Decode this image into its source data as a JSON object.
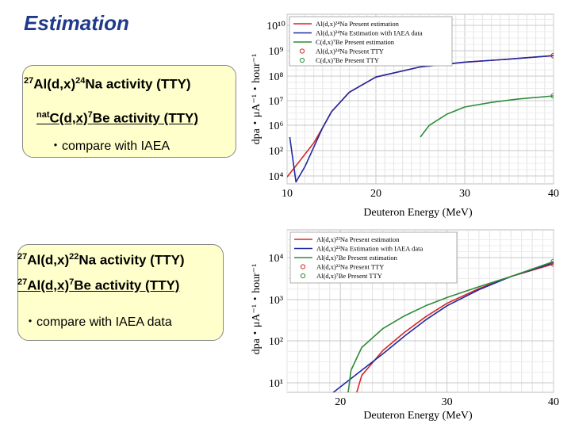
{
  "slide": {
    "title": "Estimation",
    "box1": {
      "line1": {
        "sup1": "27",
        "main1": "Al(d,x)",
        "sup2": "24",
        "main2": "Na activity (TTY)"
      },
      "line2": {
        "sup1": "nat",
        "main1": "C(d,x)",
        "sup2": "7",
        "main2": "Be activity (TTY)"
      },
      "bullet": "・compare with IAEA"
    },
    "box2": {
      "line1": {
        "sup1": "27",
        "main1": "Al(d,x)",
        "sup2": "22",
        "main2": "Na activity (TTY)"
      },
      "line2": {
        "sup1": "27",
        "main1": "Al(d,x)",
        "sup2": "7",
        "main2": "Be activity (TTY)"
      },
      "bullet": "・compare with IAEA data"
    }
  },
  "chart_data": [
    {
      "type": "line",
      "title": "",
      "xlabel": "Deuteron Energy (MeV)",
      "ylabel": "dpa・μA⁻¹・hour⁻¹",
      "xlim": [
        10,
        40
      ],
      "yscale": "log",
      "x_ticks": [
        "10",
        "20",
        "30",
        "40"
      ],
      "y_ticks": [
        "10⁴",
        "10²",
        "10⁶",
        "10⁷",
        "10⁸",
        "10⁹",
        "10¹⁰"
      ],
      "grid": true,
      "legend_position": "top-right",
      "series": [
        {
          "name": "Al(d,x)²⁴Na Present estimation",
          "color": "#d62728",
          "style": "solid",
          "x": [
            10,
            11,
            12,
            13,
            14,
            15,
            17,
            20,
            25,
            30,
            35,
            40
          ],
          "y": [
            90,
            340,
            1300,
            5000,
            30000,
            200000,
            2000000,
            12000000,
            40000000,
            70000000,
            100000000,
            150000000
          ]
        },
        {
          "name": "Al(d,x)²⁴Na Estimation with IAEA data",
          "color": "#1f2aa0",
          "style": "solid",
          "x": [
            10.3,
            11,
            12,
            13,
            14,
            15,
            17,
            20,
            25,
            30,
            35,
            40
          ],
          "y": [
            10000,
            50,
            300,
            3000,
            30000,
            200000,
            2000000,
            12000000,
            40000000,
            70000000,
            100000000,
            150000000
          ]
        },
        {
          "name": "C(d,x)⁷Be Present estimation",
          "color": "#2e8b3a",
          "style": "solid",
          "x": [
            25,
            26,
            28,
            30,
            33,
            36,
            40
          ],
          "y": [
            10000,
            40000,
            150000,
            350000,
            600000,
            900000,
            1300000
          ]
        },
        {
          "name": "Al(d,x)²⁴Na Present TTY",
          "color": "#d62728",
          "style": "marker",
          "x": [
            40
          ],
          "y": [
            150000000
          ]
        },
        {
          "name": "C(d,x)⁷Be Present TTY",
          "color": "#2e8b3a",
          "style": "marker",
          "x": [
            40
          ],
          "y": [
            1300000
          ]
        }
      ]
    },
    {
      "type": "line",
      "title": "",
      "xlabel": "Deuteron Energy (MeV)",
      "ylabel": "dpa・μA⁻¹・hour⁻¹",
      "xlim": [
        15,
        40
      ],
      "ylim": [
        1,
        100000
      ],
      "yscale": "log",
      "x_ticks": [
        "20",
        "30",
        "40"
      ],
      "y_ticks": [
        "10¹",
        "10²",
        "10³",
        "10⁴"
      ],
      "grid": true,
      "legend_position": "top-left",
      "series": [
        {
          "name": "Al(d,x)²²Na Present estimation",
          "color": "#d62728",
          "style": "solid",
          "x": [
            21,
            22,
            24,
            26,
            28,
            30,
            33,
            36,
            40
          ],
          "y": [
            2,
            15,
            60,
            160,
            380,
            800,
            1800,
            3500,
            7000
          ]
        },
        {
          "name": "Al(d,x)²²Na Estimation with IAEA data",
          "color": "#1f2aa0",
          "style": "solid",
          "x": [
            17,
            20,
            22,
            24,
            26,
            28,
            30,
            33,
            36,
            40
          ],
          "y": [
            2,
            8,
            20,
            50,
            130,
            320,
            700,
            1700,
            3500,
            7500
          ]
        },
        {
          "name": "Al(d,x)⁷Be Present estimation",
          "color": "#2e8b3a",
          "style": "solid",
          "x": [
            20.5,
            21,
            22,
            24,
            26,
            28,
            30,
            33,
            36,
            40
          ],
          "y": [
            2,
            20,
            70,
            200,
            400,
            700,
            1100,
            2000,
            3500,
            8000
          ]
        },
        {
          "name": "Al(d,x)²²Na Present TTY",
          "color": "#d62728",
          "style": "marker",
          "x": [
            40
          ],
          "y": [
            7000
          ]
        },
        {
          "name": "Al(d,x)⁷Be Present TTY",
          "color": "#2e8b3a",
          "style": "marker",
          "x": [
            40
          ],
          "y": [
            8000
          ]
        }
      ]
    }
  ]
}
